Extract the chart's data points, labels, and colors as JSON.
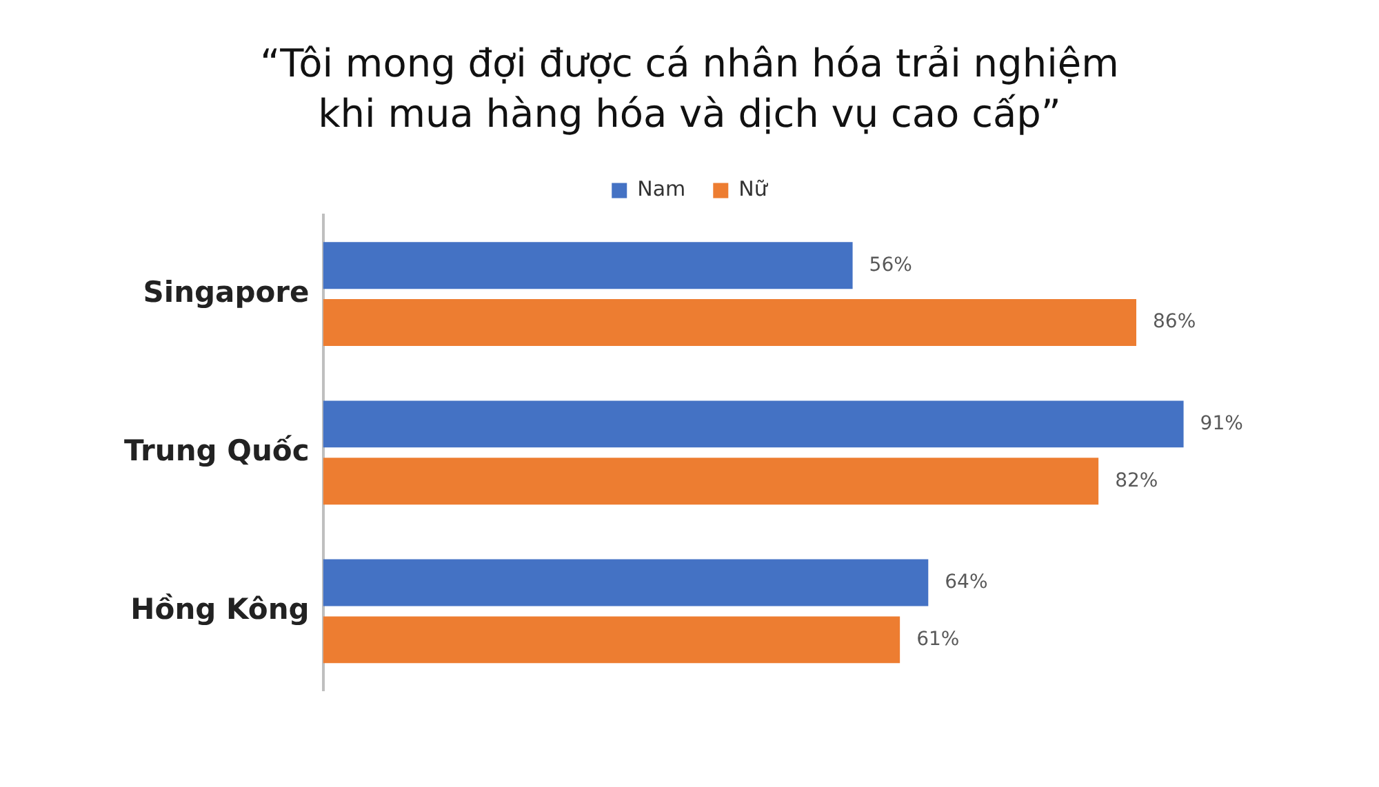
{
  "chart_data": {
    "type": "bar",
    "orientation": "horizontal",
    "title": "“Tôi mong đợi được cá nhân hóa trải nghiệm\nkhi mua hàng hóa và dịch vụ cao cấp”",
    "categories": [
      "Singapore",
      "Trung Quốc",
      "Hồng Kông"
    ],
    "series": [
      {
        "name": "Nam",
        "color": "#4472c4",
        "values": [
          56,
          91,
          64
        ],
        "value_labels": [
          "56%",
          "91%",
          "64%"
        ]
      },
      {
        "name": "Nữ",
        "color": "#ed7d31",
        "values": [
          86,
          82,
          61
        ],
        "value_labels": [
          "86%",
          "82%",
          "61%"
        ]
      }
    ],
    "legend": "top",
    "grid": false,
    "tick_labels": "y"
  }
}
